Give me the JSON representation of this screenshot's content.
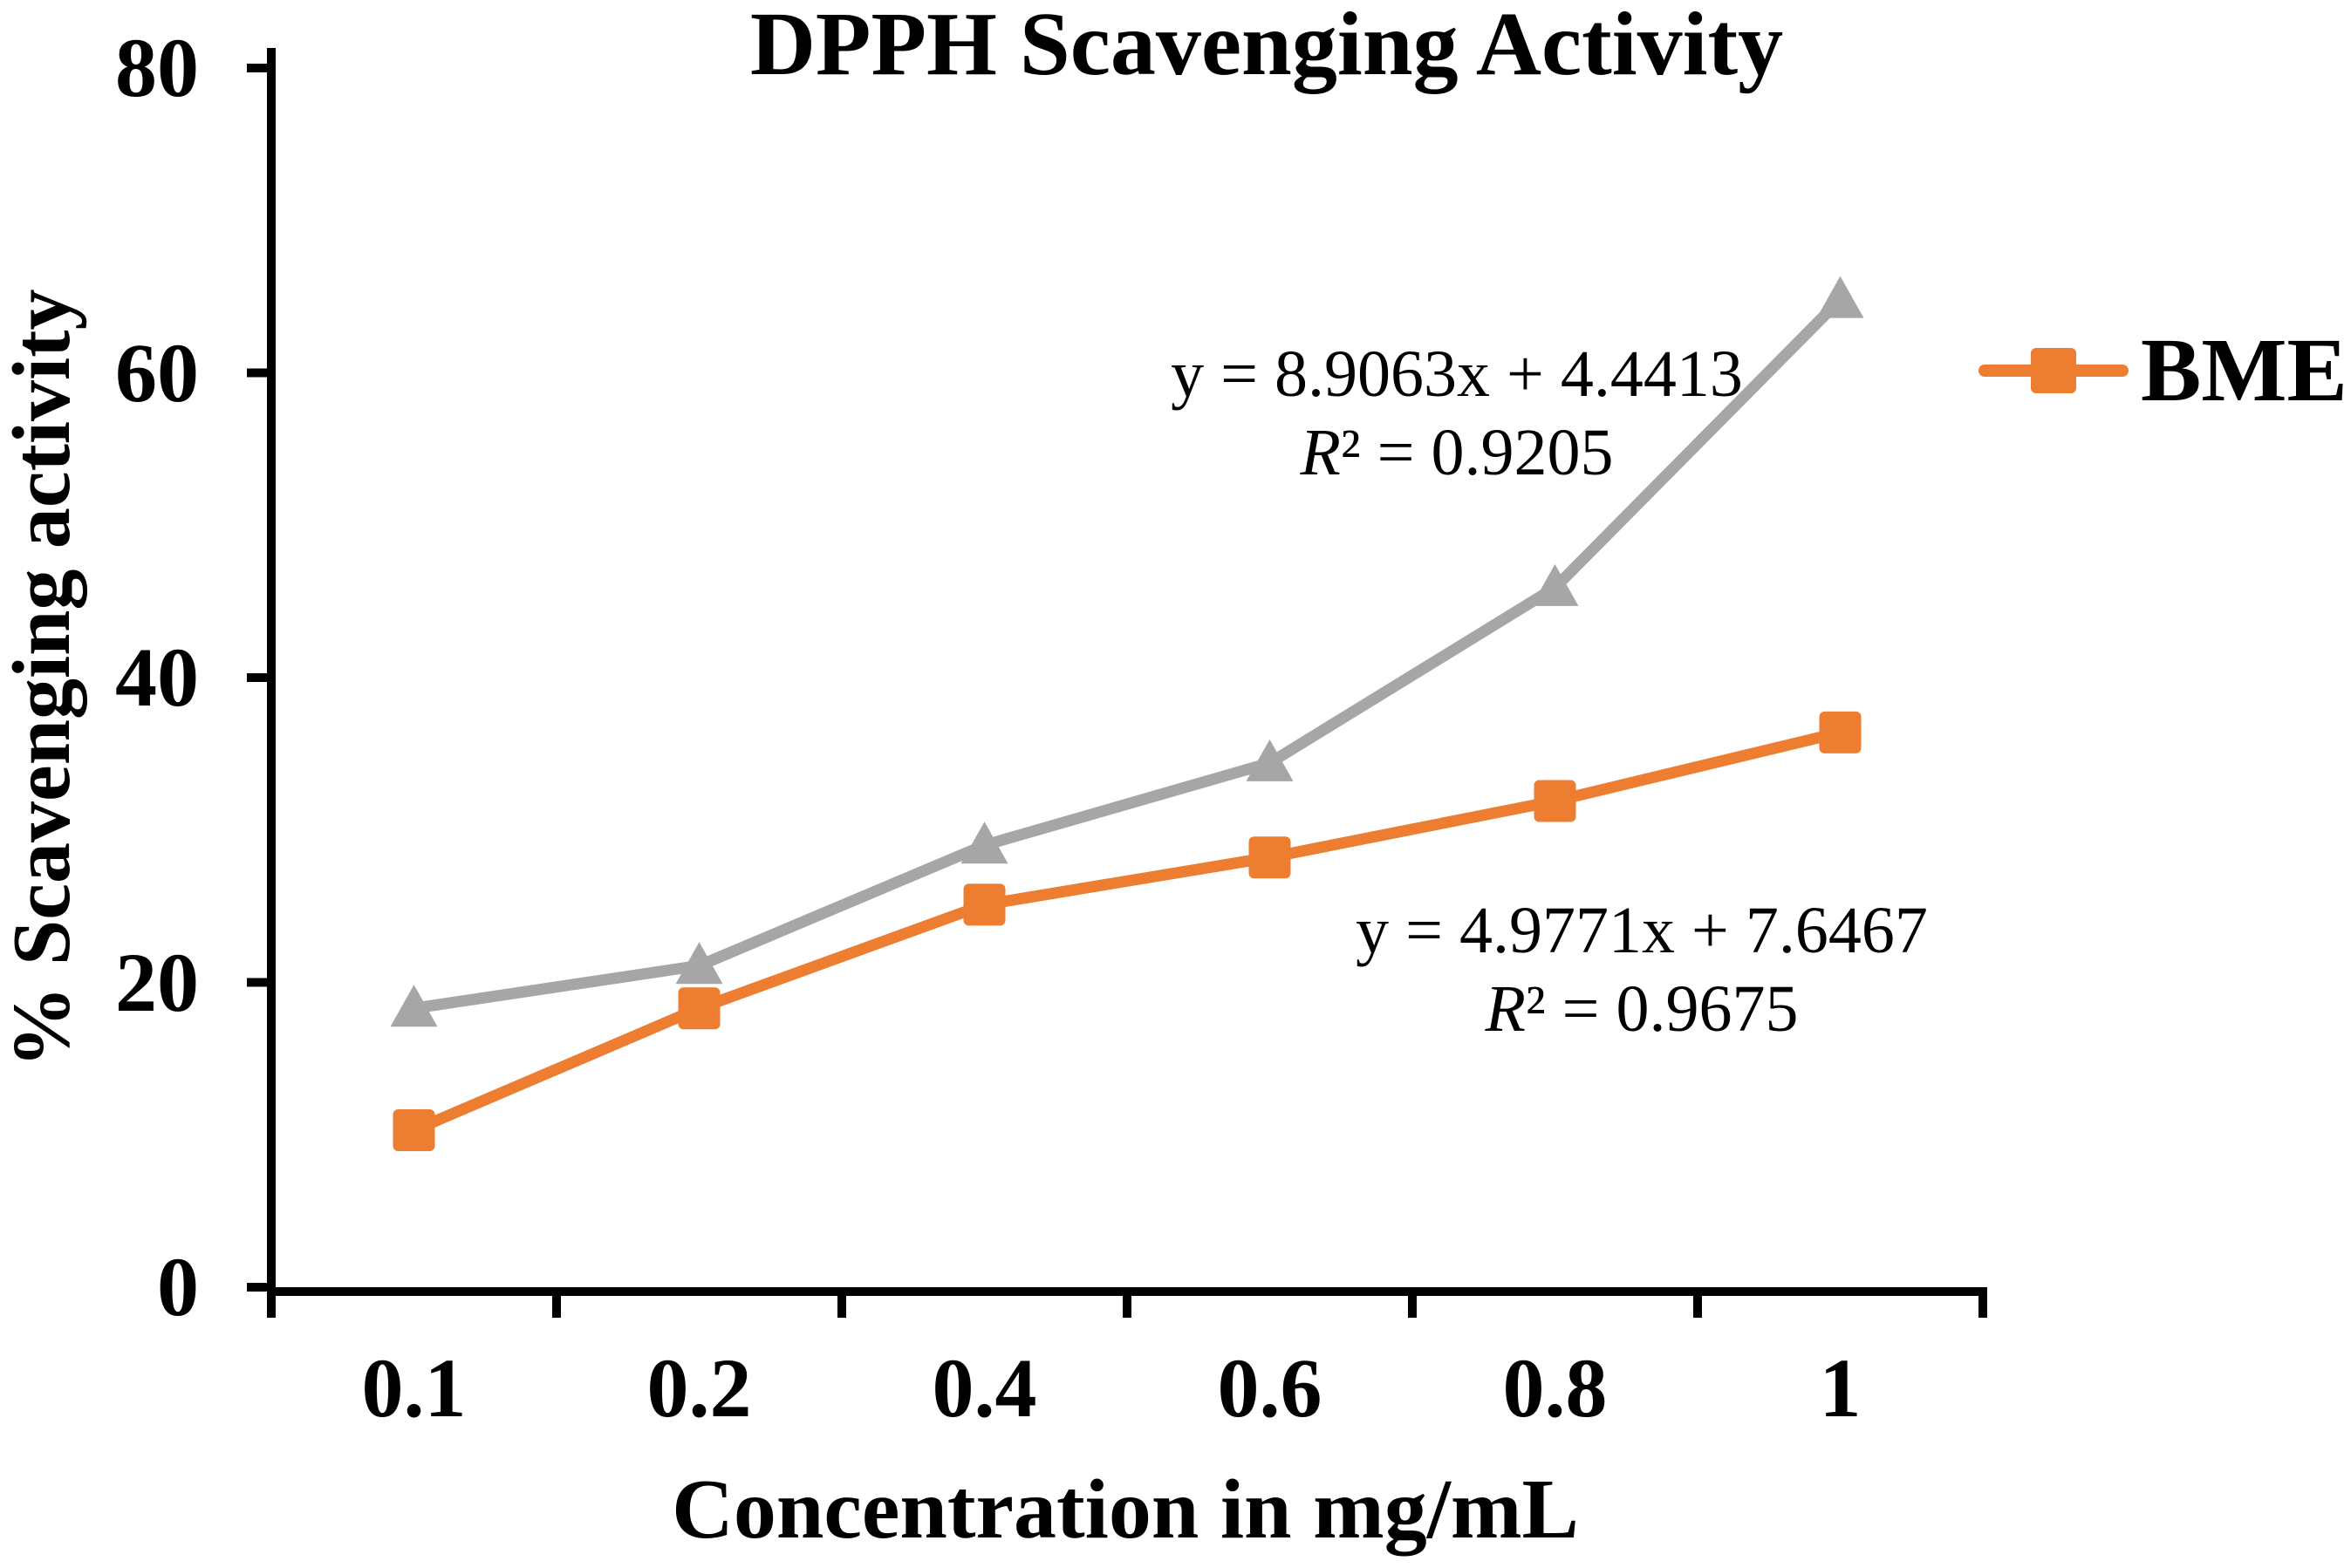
{
  "title": "DPPH Scavenging Activity",
  "x_axis": {
    "title": "Concentration in mg/mL",
    "tick_labels": [
      "0.1",
      "0.2",
      "0.4",
      "0.6",
      "0.8",
      "1"
    ]
  },
  "y_axis": {
    "title": "% Scavenging activity",
    "tick_labels": [
      "0",
      "20",
      "40",
      "60",
      "80"
    ]
  },
  "legend": {
    "label": "BME",
    "color": "#ED7D31",
    "marker": "square",
    "position": "right"
  },
  "annotations": {
    "eq1": {
      "equation": "y = 8.9063x + 4.4413",
      "r2": "R² = 0.9205"
    },
    "eq2": {
      "equation": "y = 4.9771x + 7.6467",
      "r2": "R² = 0.9675"
    }
  },
  "chart_data": {
    "type": "line",
    "title": "DPPH Scavenging Activity",
    "xlabel": "Concentration in mg/mL",
    "ylabel": "% Scavenging activity",
    "categories": [
      "0.1",
      "0.2",
      "0.4",
      "0.6",
      "0.8",
      "1"
    ],
    "ylim": [
      0,
      80
    ],
    "ytick_step": 20,
    "grid": false,
    "legend_position": "right",
    "series": [
      {
        "label": "",
        "legend_visible": false,
        "marker": "triangle",
        "color": "#A6A6A6",
        "values": [
          18.3,
          21.1,
          29.0,
          34.4,
          45.9,
          64.8
        ],
        "trendline_equation": "y = 8.9063x + 4.4413",
        "r_squared": 0.9205
      },
      {
        "label": "BME",
        "legend_visible": true,
        "marker": "square",
        "color": "#ED7D31",
        "values": [
          10.3,
          18.3,
          25.1,
          28.2,
          31.9,
          36.4
        ],
        "trendline_equation": "y = 4.9771x + 7.6467",
        "r_squared": 0.9675
      }
    ]
  }
}
